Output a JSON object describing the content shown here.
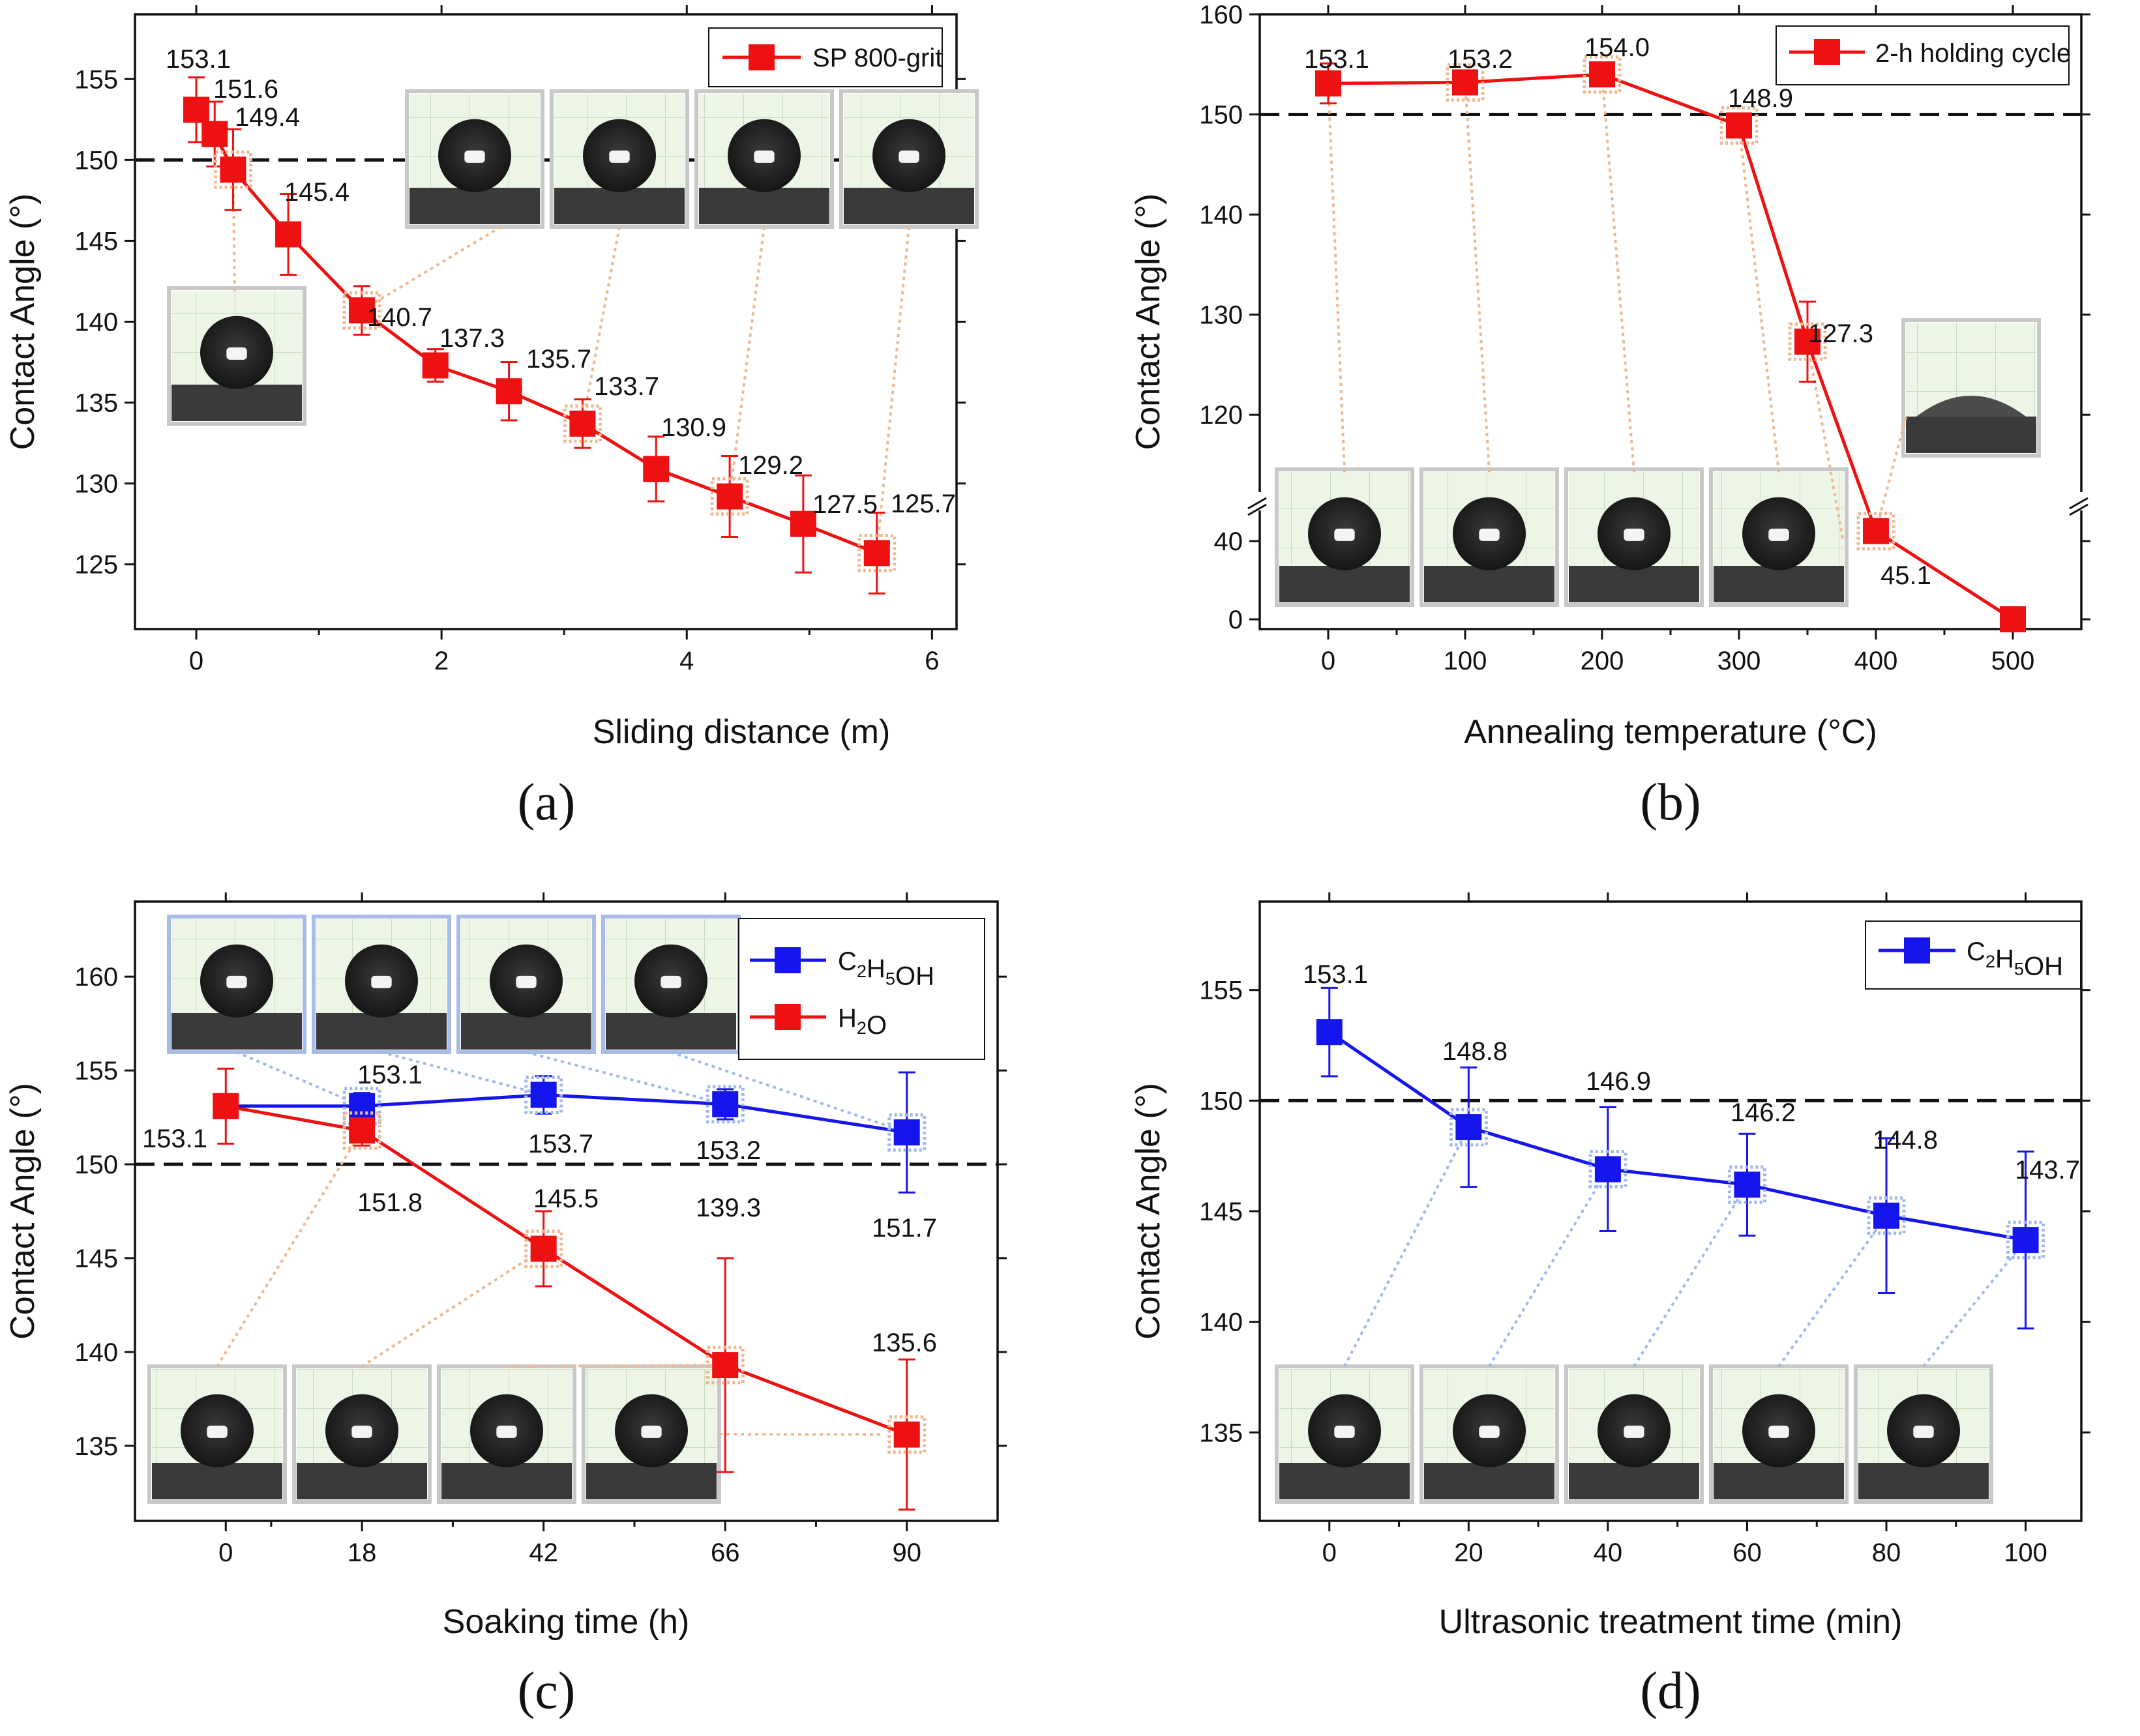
{
  "colors": {
    "red": "#ee1111",
    "blue": "#1515ee",
    "red_link": "#efb890",
    "blue_link": "#9fb8ee",
    "grid": "#c7d9bd",
    "photo_bg": "#ecf5e6"
  },
  "chart_data": [
    {
      "type": "line",
      "panel": "(a)",
      "xlabel": "Sliding distance (m)",
      "ylabel": "Contact Angle (°)",
      "xlim": [
        -0.5,
        6.2
      ],
      "ylim": [
        121,
        159
      ],
      "xticks": [
        0,
        2,
        4,
        6
      ],
      "yticks": [
        125,
        130,
        135,
        140,
        145,
        150,
        155
      ],
      "reference_line": 150,
      "legend": "top-right",
      "series": [
        {
          "name": "SP 800-grit",
          "color": "red",
          "x": [
            0,
            0.15,
            0.3,
            0.75,
            1.35,
            1.95,
            2.55,
            3.15,
            3.75,
            4.35,
            4.95,
            5.55
          ],
          "values": [
            153.1,
            151.6,
            149.4,
            145.4,
            140.7,
            137.3,
            135.7,
            133.7,
            130.9,
            129.2,
            127.5,
            125.7
          ],
          "errors": [
            2,
            2,
            2.5,
            2.5,
            1.5,
            1,
            1.8,
            1.5,
            2,
            2.5,
            3,
            2.5
          ],
          "labels": [
            "153.1",
            "151.6",
            "149.4",
            "145.4",
            "140.7",
            "137.3",
            "135.7",
            "133.7",
            "130.9",
            "129.2",
            "127.5",
            "125.7"
          ]
        }
      ]
    },
    {
      "type": "line",
      "panel": "(b)",
      "xlabel": "Annealing temperature (°C)",
      "ylabel": "Contact Angle (°)",
      "xlim": [
        -50,
        550
      ],
      "ylim_upper": [
        115,
        160
      ],
      "ylim_lower": [
        -5,
        55
      ],
      "xticks": [
        0,
        100,
        200,
        300,
        400,
        500
      ],
      "yticks_upper": [
        120,
        130,
        140,
        150,
        160
      ],
      "yticks_lower": [
        0,
        40
      ],
      "reference_line": 150,
      "legend": "top-right",
      "series": [
        {
          "name": "2-h holding cycle",
          "color": "red",
          "x": [
            0,
            100,
            200,
            300,
            350,
            400,
            500
          ],
          "values": [
            153.1,
            153.2,
            154.0,
            148.9,
            127.3,
            45.1,
            0
          ],
          "errors": [
            2,
            0.8,
            0.8,
            1.2,
            4,
            0,
            0
          ],
          "labels": [
            "153.1",
            "153.2",
            "154.0",
            "148.9",
            "127.3",
            "45.1",
            ""
          ]
        }
      ]
    },
    {
      "type": "line",
      "panel": "(c)",
      "xlabel": "Soaking time (h)",
      "ylabel": "Contact Angle (°)",
      "xlim": [
        -12,
        102
      ],
      "ylim": [
        131,
        164
      ],
      "xticks": [
        0,
        18,
        42,
        66,
        90
      ],
      "yticks": [
        135,
        140,
        145,
        150,
        155,
        160
      ],
      "x_positions": [
        0,
        18,
        42,
        66,
        90
      ],
      "reference_line": 150,
      "legend": "top-right",
      "series": [
        {
          "name": "C2H5OH",
          "color": "blue",
          "values": [
            153.1,
            153.1,
            153.7,
            153.2,
            151.7
          ],
          "errors": [
            0,
            0.7,
            1,
            0.8,
            3.2
          ],
          "labels": [
            "",
            "153.1",
            "153.7",
            "153.2",
            "151.7"
          ]
        },
        {
          "name": "H2O",
          "color": "red",
          "values": [
            153.1,
            151.8,
            145.5,
            139.3,
            135.6
          ],
          "errors": [
            2,
            0.8,
            2,
            5.7,
            4
          ],
          "labels": [
            "153.1",
            "151.8",
            "145.5",
            "139.3",
            "135.6"
          ]
        }
      ]
    },
    {
      "type": "line",
      "panel": "(d)",
      "xlabel": "Ultrasonic treatment time (min)",
      "ylabel": "Contact Angle (°)",
      "xlim": [
        -10,
        108
      ],
      "ylim": [
        131,
        159
      ],
      "xticks": [
        0,
        20,
        40,
        60,
        80,
        100
      ],
      "yticks": [
        135,
        140,
        145,
        150,
        155
      ],
      "reference_line": 150,
      "legend": "top-right",
      "series": [
        {
          "name": "C2H5OH",
          "color": "blue",
          "x": [
            0,
            20,
            40,
            60,
            80,
            100
          ],
          "values": [
            153.1,
            148.8,
            146.9,
            146.2,
            144.8,
            143.7
          ],
          "errors": [
            2,
            2.7,
            2.8,
            2.3,
            3.5,
            4
          ],
          "labels": [
            "153.1",
            "148.8",
            "146.9",
            "146.2",
            "144.8",
            "143.7"
          ]
        }
      ]
    }
  ]
}
